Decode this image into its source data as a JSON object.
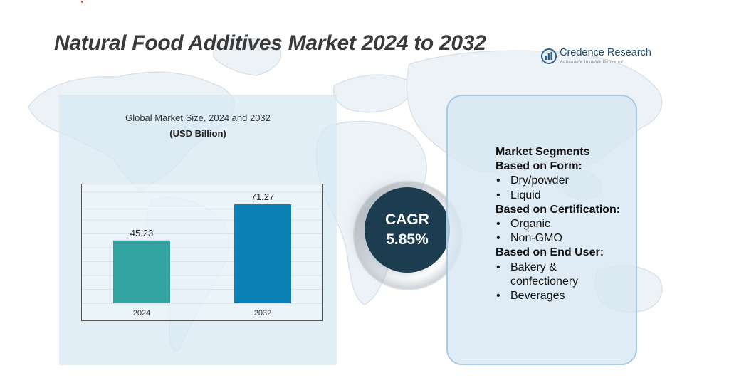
{
  "header": {
    "title": "Natural Food Additives Market 2024 to 2032"
  },
  "logo": {
    "name": "Credence Research",
    "tagline": "Actionable Insights Delivered",
    "icon": "bar-chart-icon",
    "color": "#1f4e79"
  },
  "chart_data": {
    "type": "bar",
    "title": "Global Market Size, 2024 and 2032",
    "subtitle": "(USD Billion)",
    "categories": [
      "2024",
      "2032"
    ],
    "values": [
      45.23,
      71.27
    ],
    "colors": [
      "#33a39f",
      "#0a7fb4"
    ],
    "ylim": [
      0,
      80
    ],
    "grid": true,
    "xlabel": "",
    "ylabel": ""
  },
  "cagr": {
    "label": "CAGR",
    "value": "5.85%",
    "color": "#1b3d4f"
  },
  "segments": {
    "heading": "Market Segments",
    "groups": [
      {
        "title": "Based on Form:",
        "items": [
          "Dry/powder",
          "Liquid"
        ]
      },
      {
        "title": "Based on Certification:",
        "items": [
          "Organic",
          "Non-GMO"
        ]
      },
      {
        "title": "Based on End User:",
        "items": [
          "Bakery &",
          "confectionery",
          "Beverages"
        ]
      }
    ]
  }
}
